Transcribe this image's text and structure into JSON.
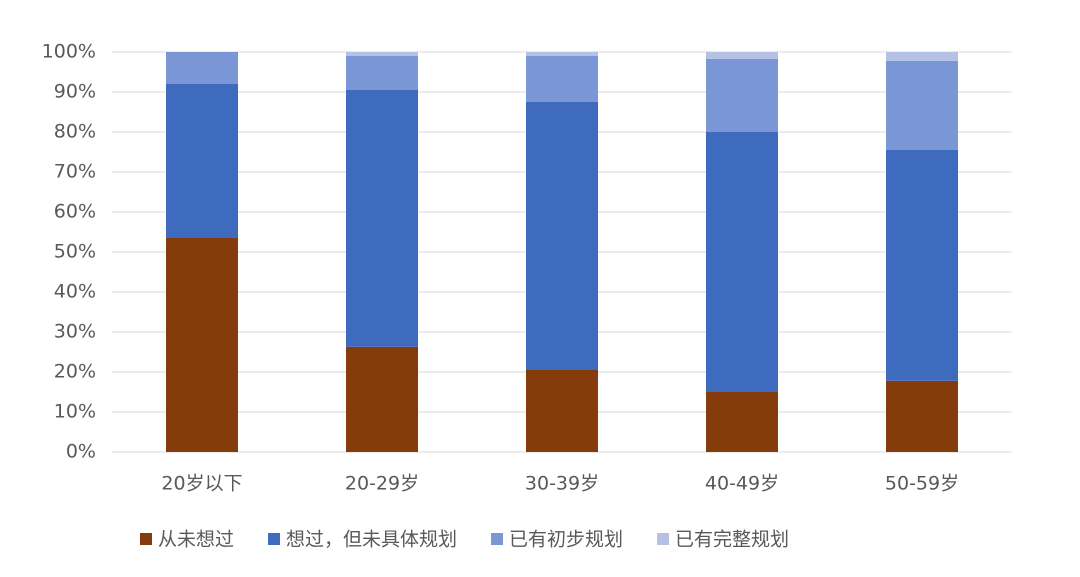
{
  "chart_data": {
    "type": "stacked_bar",
    "categories": [
      "20岁以下",
      "20-29岁",
      "30-39岁",
      "40-49岁",
      "50-59岁"
    ],
    "series": [
      {
        "name": "从未想过",
        "color": "#843c0c",
        "values": [
          53.5,
          26.3,
          20.5,
          15,
          17.8
        ]
      },
      {
        "name": "想过，但未具体规划",
        "color": "#3f6bbf",
        "values": [
          38.5,
          64.2,
          67,
          65,
          57.7
        ]
      },
      {
        "name": "已有初步规划",
        "color": "#7b96d4",
        "values": [
          8,
          8.5,
          11.5,
          18.3,
          22.3
        ]
      },
      {
        "name": "已有完整规划",
        "color": "#b4c0e4",
        "values": [
          0,
          1,
          1,
          1.7,
          2.2
        ]
      }
    ],
    "ylim": [
      0,
      100
    ],
    "yticks": [
      {
        "value": 0,
        "label": "0%"
      },
      {
        "value": 10,
        "label": "10%"
      },
      {
        "value": 20,
        "label": "20%"
      },
      {
        "value": 30,
        "label": "30%"
      },
      {
        "value": 40,
        "label": "40%"
      },
      {
        "value": 50,
        "label": "50%"
      },
      {
        "value": 60,
        "label": "60%"
      },
      {
        "value": 70,
        "label": "70%"
      },
      {
        "value": 80,
        "label": "80%"
      },
      {
        "value": 90,
        "label": "90%"
      },
      {
        "value": 100,
        "label": "100%"
      }
    ],
    "grid": true,
    "legend": "bottom"
  }
}
